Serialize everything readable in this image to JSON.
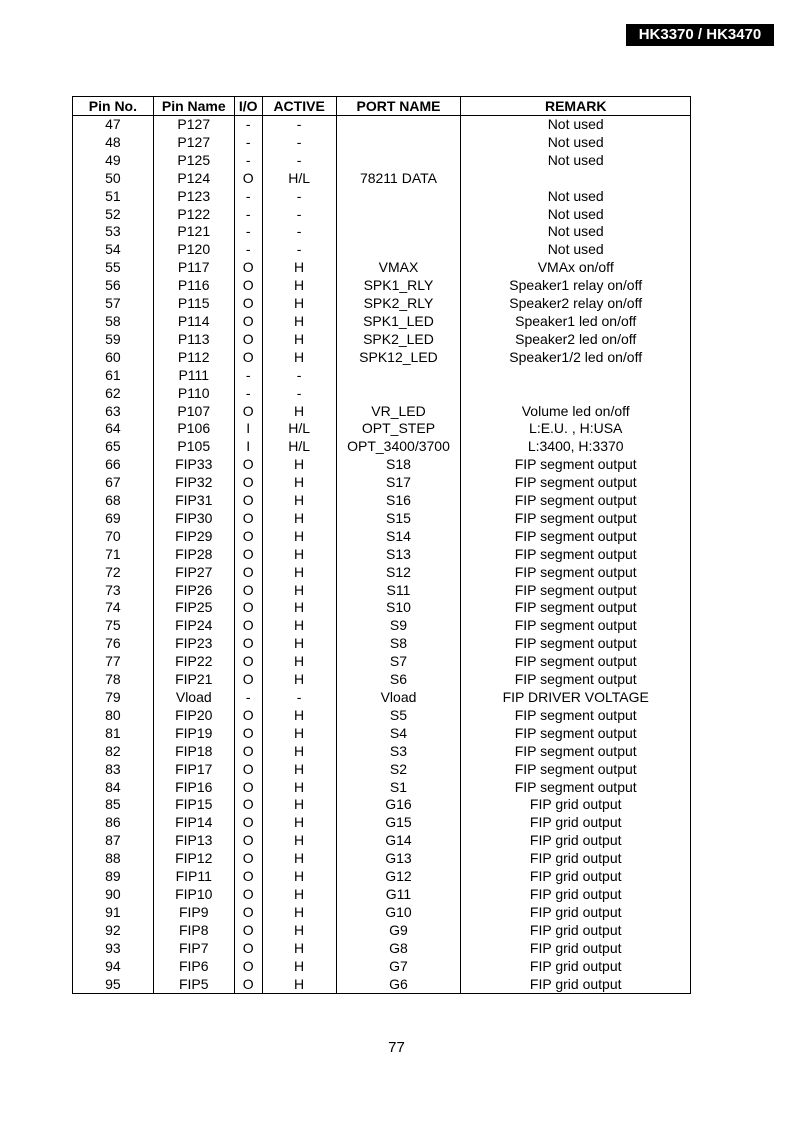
{
  "header": {
    "model": "HK3370 / HK3470"
  },
  "table": {
    "columns": [
      "Pin No.",
      "Pin Name",
      "I/O",
      "ACTIVE",
      "PORT NAME",
      "REMARK"
    ],
    "rows": [
      [
        "47",
        "P127",
        "-",
        "-",
        "",
        "Not used"
      ],
      [
        "48",
        "P127",
        "-",
        "-",
        "",
        "Not used"
      ],
      [
        "49",
        "P125",
        "-",
        "-",
        "",
        "Not used"
      ],
      [
        "50",
        "P124",
        "O",
        "H/L",
        "78211 DATA",
        ""
      ],
      [
        "51",
        "P123",
        "-",
        "-",
        "",
        "Not used"
      ],
      [
        "52",
        "P122",
        "-",
        "-",
        "",
        "Not used"
      ],
      [
        "53",
        "P121",
        "-",
        "-",
        "",
        "Not used"
      ],
      [
        "54",
        "P120",
        "-",
        "-",
        "",
        "Not used"
      ],
      [
        "55",
        "P117",
        "O",
        "H",
        "VMAX",
        "VMAx on/off"
      ],
      [
        "56",
        "P116",
        "O",
        "H",
        "SPK1_RLY",
        "Speaker1 relay on/off"
      ],
      [
        "57",
        "P115",
        "O",
        "H",
        "SPK2_RLY",
        "Speaker2 relay on/off"
      ],
      [
        "58",
        "P114",
        "O",
        "H",
        "SPK1_LED",
        "Speaker1 led on/off"
      ],
      [
        "59",
        "P113",
        "O",
        "H",
        "SPK2_LED",
        "Speaker2 led on/off"
      ],
      [
        "60",
        "P112",
        "O",
        "H",
        "SPK12_LED",
        "Speaker1/2 led on/off"
      ],
      [
        "61",
        "P111",
        "-",
        "-",
        "",
        ""
      ],
      [
        "62",
        "P110",
        "-",
        "-",
        "",
        ""
      ],
      [
        "63",
        "P107",
        "O",
        "H",
        "VR_LED",
        "Volume led on/off"
      ],
      [
        "64",
        "P106",
        "I",
        "H/L",
        "OPT_STEP",
        "L:E.U. , H:USA"
      ],
      [
        "65",
        "P105",
        "I",
        "H/L",
        "OPT_3400/3700",
        "L:3400, H:3370"
      ],
      [
        "66",
        "FIP33",
        "O",
        "H",
        "S18",
        "FIP segment output"
      ],
      [
        "67",
        "FIP32",
        "O",
        "H",
        "S17",
        "FIP segment output"
      ],
      [
        "68",
        "FIP31",
        "O",
        "H",
        "S16",
        "FIP segment output"
      ],
      [
        "69",
        "FIP30",
        "O",
        "H",
        "S15",
        "FIP segment output"
      ],
      [
        "70",
        "FIP29",
        "O",
        "H",
        "S14",
        "FIP segment output"
      ],
      [
        "71",
        "FIP28",
        "O",
        "H",
        "S13",
        "FIP segment output"
      ],
      [
        "72",
        "FIP27",
        "O",
        "H",
        "S12",
        "FIP segment output"
      ],
      [
        "73",
        "FIP26",
        "O",
        "H",
        "S11",
        "FIP segment output"
      ],
      [
        "74",
        "FIP25",
        "O",
        "H",
        "S10",
        "FIP segment output"
      ],
      [
        "75",
        "FIP24",
        "O",
        "H",
        "S9",
        "FIP segment output"
      ],
      [
        "76",
        "FIP23",
        "O",
        "H",
        "S8",
        "FIP segment output"
      ],
      [
        "77",
        "FIP22",
        "O",
        "H",
        "S7",
        "FIP segment output"
      ],
      [
        "78",
        "FIP21",
        "O",
        "H",
        "S6",
        "FIP segment output"
      ],
      [
        "79",
        "Vload",
        "-",
        "-",
        "Vload",
        "FIP DRIVER VOLTAGE"
      ],
      [
        "80",
        "FIP20",
        "O",
        "H",
        "S5",
        "FIP segment output"
      ],
      [
        "81",
        "FIP19",
        "O",
        "H",
        "S4",
        "FIP segment output"
      ],
      [
        "82",
        "FIP18",
        "O",
        "H",
        "S3",
        "FIP segment output"
      ],
      [
        "83",
        "FIP17",
        "O",
        "H",
        "S2",
        "FIP segment output"
      ],
      [
        "84",
        "FIP16",
        "O",
        "H",
        "S1",
        "FIP segment output"
      ],
      [
        "85",
        "FIP15",
        "O",
        "H",
        "G16",
        "FIP grid output"
      ],
      [
        "86",
        "FIP14",
        "O",
        "H",
        "G15",
        "FIP grid output"
      ],
      [
        "87",
        "FIP13",
        "O",
        "H",
        "G14",
        "FIP grid output"
      ],
      [
        "88",
        "FIP12",
        "O",
        "H",
        "G13",
        "FIP grid output"
      ],
      [
        "89",
        "FIP11",
        "O",
        "H",
        "G12",
        "FIP grid output"
      ],
      [
        "90",
        "FIP10",
        "O",
        "H",
        "G11",
        "FIP grid output"
      ],
      [
        "91",
        "FIP9",
        "O",
        "H",
        "G10",
        "FIP grid output"
      ],
      [
        "92",
        "FIP8",
        "O",
        "H",
        "G9",
        "FIP grid output"
      ],
      [
        "93",
        "FIP7",
        "O",
        "H",
        "G8",
        "FIP grid output"
      ],
      [
        "94",
        "FIP6",
        "O",
        "H",
        "G7",
        "FIP grid output"
      ],
      [
        "95",
        "FIP5",
        "O",
        "H",
        "G6",
        "FIP grid output"
      ]
    ]
  },
  "footer": {
    "page_number": "77"
  }
}
